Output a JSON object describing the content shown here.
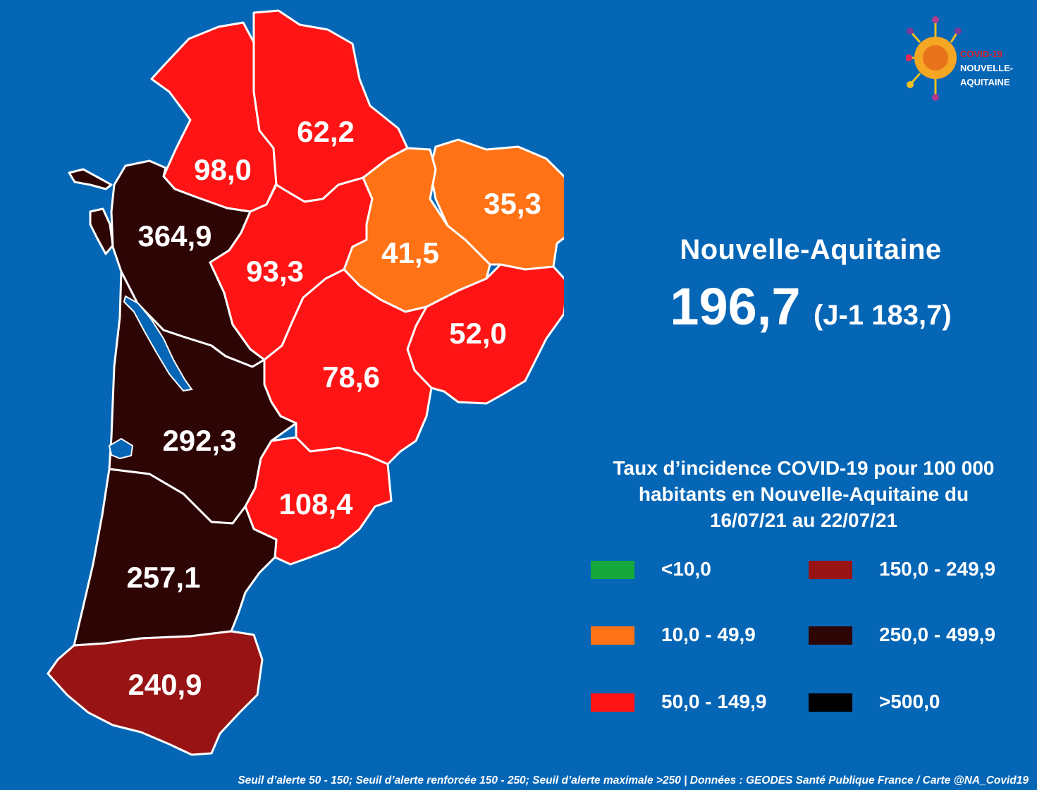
{
  "logo": {
    "line1": "COVID-19",
    "line2": "NOUVELLE-",
    "line3": "AQUITAINE"
  },
  "region": {
    "name": "Nouvelle-Aquitaine",
    "value": "196,7",
    "previous": "(J-1 183,7)"
  },
  "legend": {
    "title_lines": [
      "Taux d’incidence COVID-19 pour 100 000",
      "habitants en Nouvelle-Aquitaine du",
      "16/07/21 au 22/07/21"
    ],
    "items": [
      {
        "label": "<10,0",
        "color": "#16a83a"
      },
      {
        "label": "10,0 - 49,9",
        "color": "#ff7316"
      },
      {
        "label": "50,0 - 149,9",
        "color": "#fe1414"
      },
      {
        "label": "150,0 - 249,9",
        "color": "#981414"
      },
      {
        "label": "250,0 - 499,9",
        "color": "#2e0505"
      },
      {
        "label": ">500,0",
        "color": "#000000"
      }
    ]
  },
  "departments": [
    {
      "key": "deux-sevres",
      "value": "98,0",
      "color": "#fe1414"
    },
    {
      "key": "vienne",
      "value": "62,2",
      "color": "#fe1414"
    },
    {
      "key": "creuse",
      "value": "35,3",
      "color": "#ff7316"
    },
    {
      "key": "charente-maritime",
      "value": "364,9",
      "color": "#2e0505"
    },
    {
      "key": "charente",
      "value": "93,3",
      "color": "#fe1414"
    },
    {
      "key": "haute-vienne",
      "value": "41,5",
      "color": "#ff7316"
    },
    {
      "key": "correze",
      "value": "52,0",
      "color": "#fe1414"
    },
    {
      "key": "dordogne",
      "value": "78,6",
      "color": "#fe1414"
    },
    {
      "key": "gironde",
      "value": "292,3",
      "color": "#2e0505"
    },
    {
      "key": "lot-et-garonne",
      "value": "108,4",
      "color": "#fe1414"
    },
    {
      "key": "landes",
      "value": "257,1",
      "color": "#2e0505"
    },
    {
      "key": "pyrenees-atlantiques",
      "value": "240,9",
      "color": "#981414"
    }
  ],
  "footer": "Seuil d’alerte 50 - 150; Seuil d’alerte renforcée 150 - 250; Seuil d’alerte maximale >250 | Données : GEODES Santé Publique France / Carte @NA_Covid19"
}
